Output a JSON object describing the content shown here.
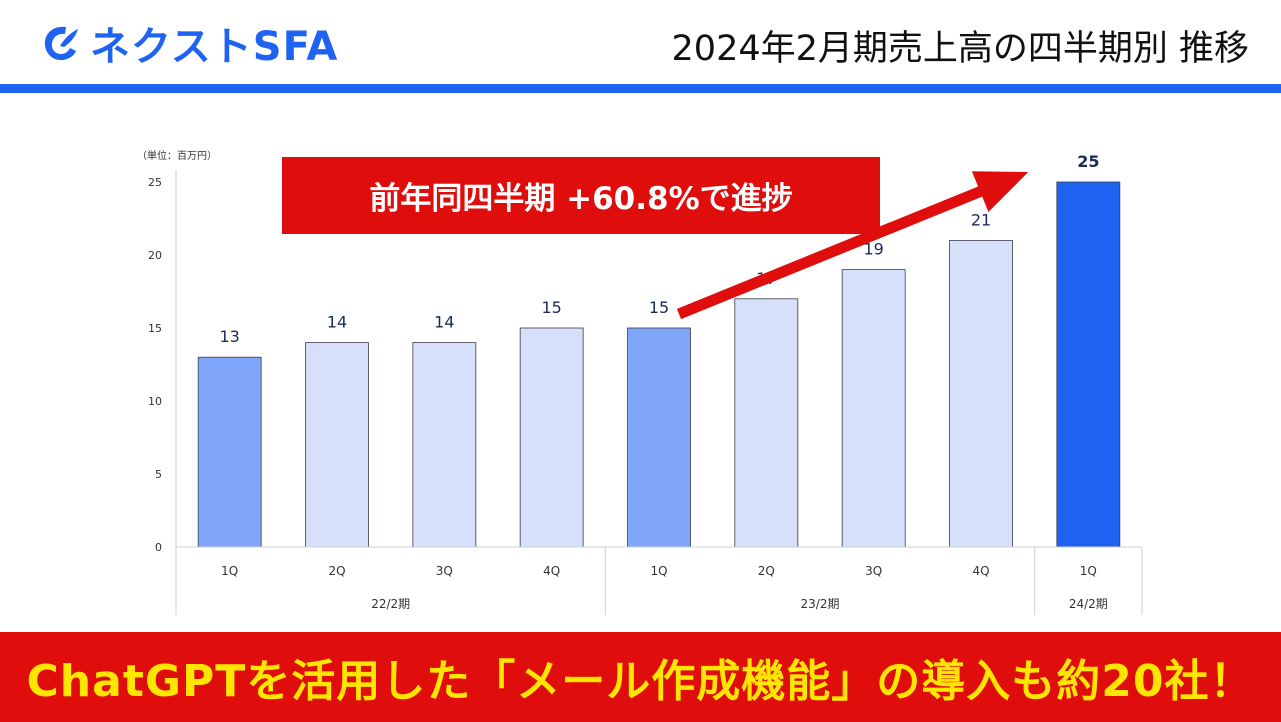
{
  "header": {
    "logo_text": "ネクストSFA",
    "title": "2024年2月期売上高の四半期別 推移"
  },
  "callout": {
    "text": "前年同四半期 +60.8%で進捗"
  },
  "footer": {
    "text": "ChatGPTを活用した「メール作成機能」の導入も約20社！"
  },
  "colors": {
    "brand_blue": "#1f63f2",
    "accent_red": "#e00d0d",
    "footer_text": "#ffe600",
    "bar_light": "#d6e0fb",
    "bar_mid": "#80a6f9",
    "bar_strong": "#1f63f2"
  },
  "chart_data": {
    "type": "bar",
    "unit_label": "（単位：百万円）",
    "categories": [
      "1Q",
      "2Q",
      "3Q",
      "4Q",
      "1Q",
      "2Q",
      "3Q",
      "4Q",
      "1Q"
    ],
    "groups": [
      {
        "label": "22/2期",
        "count": 4
      },
      {
        "label": "23/2期",
        "count": 4
      },
      {
        "label": "24/2期",
        "count": 1
      }
    ],
    "values": [
      13,
      14,
      14,
      15,
      15,
      17,
      19,
      21,
      25
    ],
    "labels": [
      "13",
      "14",
      "14",
      "15",
      "15",
      "17",
      "19",
      "21",
      "25"
    ],
    "bar_styles": [
      "mid",
      "light",
      "light",
      "light",
      "mid",
      "light",
      "light",
      "light",
      "strong"
    ],
    "ylim": [
      0,
      25
    ],
    "yticks": [
      0,
      5,
      10,
      15,
      20,
      25
    ],
    "grid": false,
    "legend": "none",
    "annotation": {
      "type": "arrow",
      "from_index": 4,
      "to_index": 8,
      "text": "前年同四半期 +60.8%で進捗"
    }
  }
}
